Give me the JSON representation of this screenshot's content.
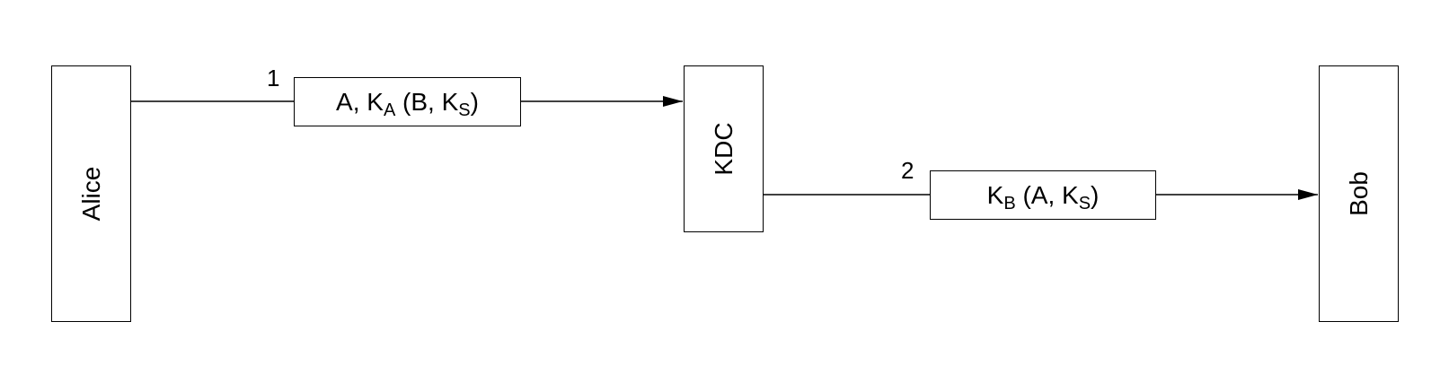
{
  "entities": {
    "alice": "Alice",
    "kdc": "KDC",
    "bob": "Bob"
  },
  "messages": [
    {
      "step": "1",
      "parts": [
        "A, K",
        "A",
        " (B, K",
        "S",
        ")"
      ]
    },
    {
      "step": "2",
      "parts": [
        "K",
        "B",
        " (A, K",
        "S",
        ")"
      ]
    }
  ]
}
